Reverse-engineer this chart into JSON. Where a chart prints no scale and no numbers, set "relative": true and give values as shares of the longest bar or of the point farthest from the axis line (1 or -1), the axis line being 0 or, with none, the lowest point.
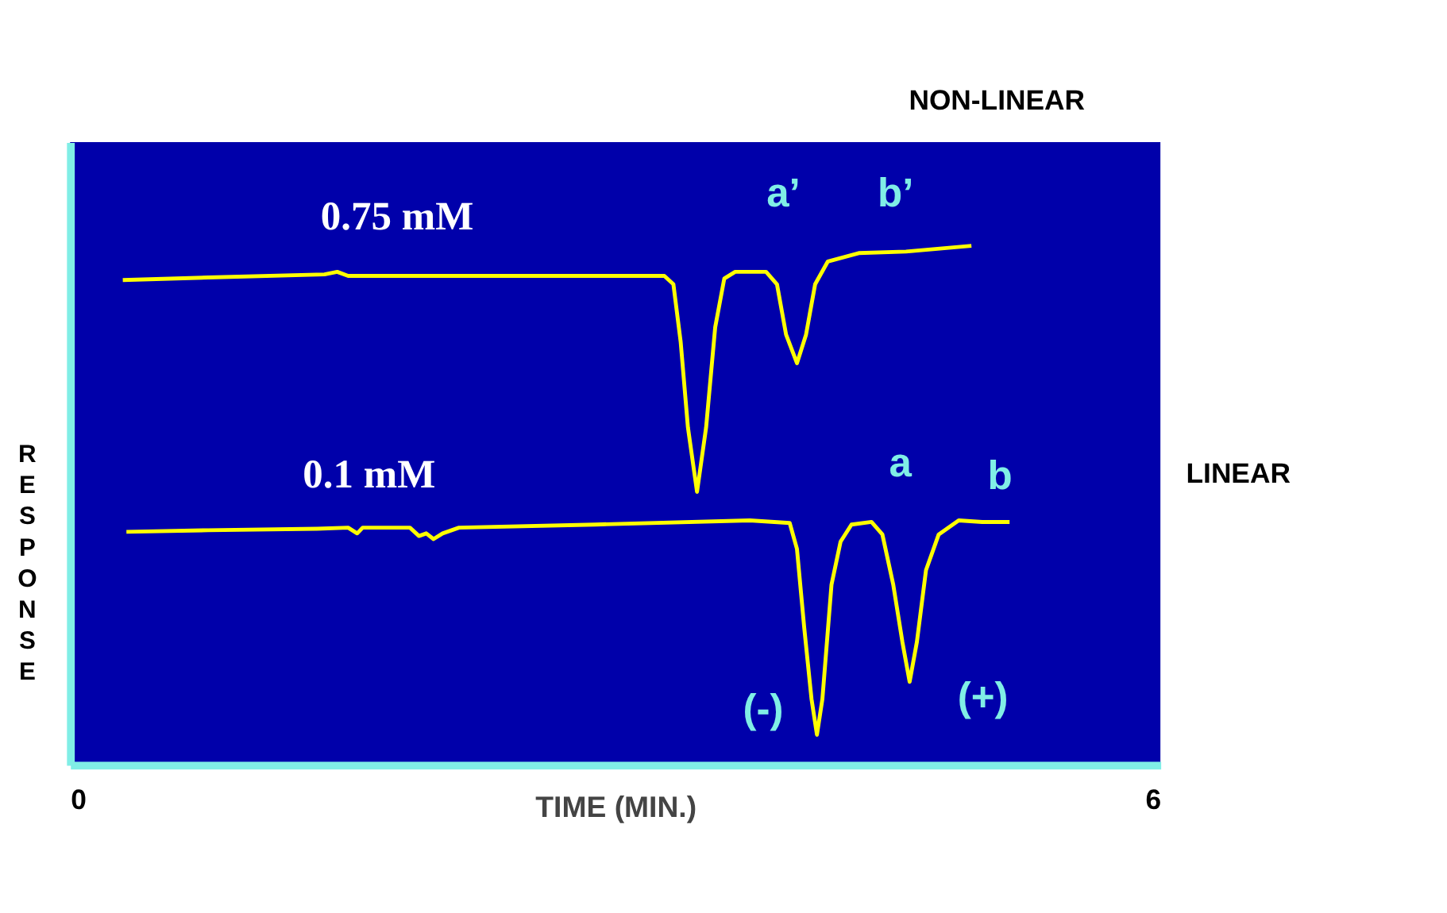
{
  "chart_data": {
    "type": "line",
    "relative": true,
    "xlabel": "TIME (MIN.)",
    "ylabel": "RESPONSE",
    "xlim": [
      0,
      6
    ],
    "xticks": [
      0,
      6
    ],
    "legend": false,
    "grid": false,
    "marker": "none",
    "line_style": "solid",
    "series": [
      {
        "name": "0.75 mM",
        "color": "#ffff00",
        "x": [
          0.29,
          0.76,
          1.4,
          1.47,
          1.53,
          2.46,
          3.27,
          3.32,
          3.36,
          3.4,
          3.45,
          3.5,
          3.55,
          3.6,
          3.66,
          3.83,
          3.89,
          3.94,
          4.0,
          4.05,
          4.1,
          4.17,
          4.34,
          4.6,
          4.96
        ],
        "values": [
          0.934,
          0.939,
          0.945,
          0.95,
          0.942,
          0.942,
          0.942,
          0.926,
          0.815,
          0.65,
          0.526,
          0.65,
          0.843,
          0.937,
          0.95,
          0.95,
          0.926,
          0.829,
          0.774,
          0.829,
          0.926,
          0.97,
          0.986,
          0.989,
          1.0
        ]
      },
      {
        "name": "0.1 mM",
        "color": "#ffff00",
        "x": [
          0.31,
          0.76,
          1.36,
          1.53,
          1.58,
          1.61,
          1.87,
          1.92,
          1.96,
          2.0,
          2.05,
          2.14,
          2.89,
          3.74,
          3.96,
          4.0,
          4.04,
          4.08,
          4.11,
          4.14,
          4.19,
          4.24,
          4.3,
          4.41,
          4.47,
          4.53,
          4.58,
          4.62,
          4.66,
          4.71,
          4.78,
          4.89,
          5.02,
          5.17
        ],
        "values": [
          0.449,
          0.452,
          0.455,
          0.457,
          0.446,
          0.457,
          0.457,
          0.441,
          0.446,
          0.435,
          0.446,
          0.457,
          0.463,
          0.471,
          0.466,
          0.416,
          0.264,
          0.127,
          0.058,
          0.127,
          0.347,
          0.43,
          0.463,
          0.468,
          0.444,
          0.347,
          0.237,
          0.16,
          0.237,
          0.375,
          0.444,
          0.471,
          0.468,
          0.468
        ]
      }
    ],
    "annotations": [
      "a’",
      "b’",
      "a",
      "b",
      "(-)",
      "(+)",
      "NON-LINEAR",
      "LINEAR"
    ]
  }
}
